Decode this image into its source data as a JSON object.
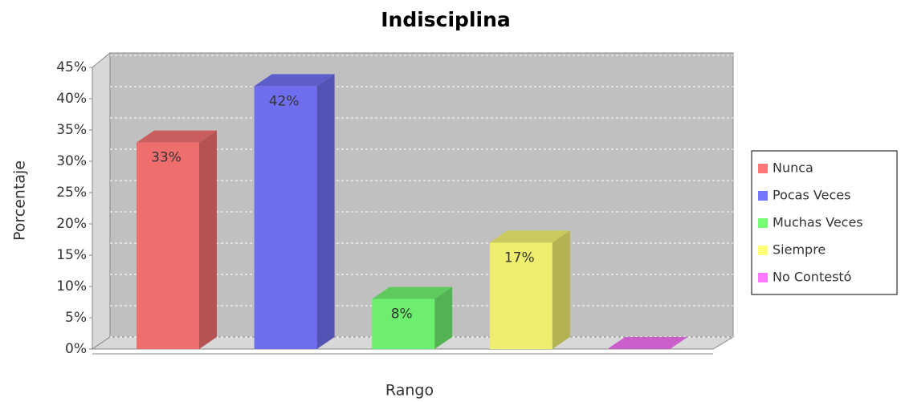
{
  "chart_data": {
    "type": "bar3d",
    "title": "Indisciplina",
    "x_label": "Rango",
    "y_label": "Porcentaje",
    "categories": [
      null
    ],
    "series": [
      {
        "name": "Nunca",
        "color": "#ee6e6e",
        "values": [
          33
        ],
        "value_labels": [
          "33%"
        ]
      },
      {
        "name": "Pocas Veces",
        "color": "#6e6eee",
        "values": [
          42
        ],
        "value_labels": [
          "42%"
        ]
      },
      {
        "name": "Muchas Veces",
        "color": "#6eee6e",
        "values": [
          8
        ],
        "value_labels": [
          "8%"
        ]
      },
      {
        "name": "Siempre",
        "color": "#eeee6e",
        "values": [
          17
        ],
        "value_labels": [
          "17%"
        ]
      },
      {
        "name": "No Contestó",
        "color": "#ee6eee",
        "values": [
          0
        ],
        "value_labels": [
          null
        ]
      }
    ],
    "ylim": [
      0,
      45
    ],
    "yticks": [
      {
        "value": 0,
        "label": "0%"
      },
      {
        "value": 5,
        "label": "5%"
      },
      {
        "value": 10,
        "label": "10%"
      },
      {
        "value": 15,
        "label": "15%"
      },
      {
        "value": 20,
        "label": "20%"
      },
      {
        "value": 25,
        "label": "25%"
      },
      {
        "value": 30,
        "label": "30%"
      },
      {
        "value": 35,
        "label": "35%"
      },
      {
        "value": 40,
        "label": "40%"
      },
      {
        "value": 45,
        "label": "45%"
      }
    ],
    "grid": true,
    "legend": "right"
  }
}
